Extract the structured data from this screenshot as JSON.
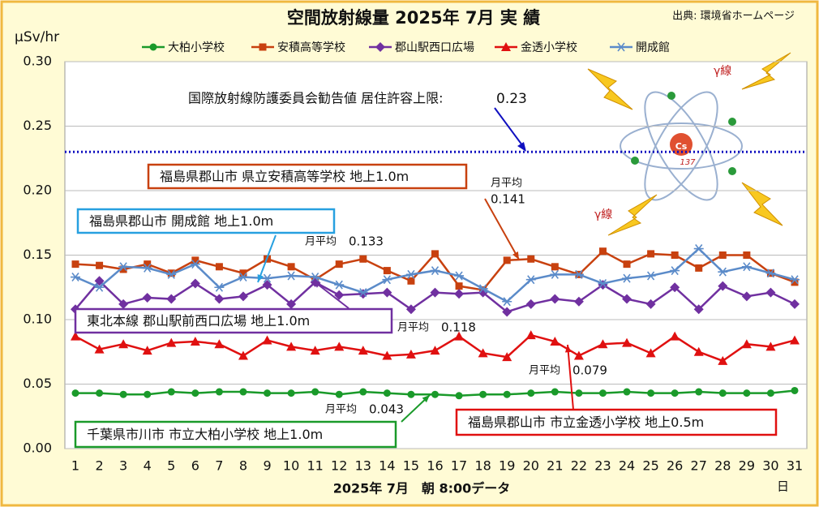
{
  "chart_data": {
    "type": "line",
    "title": "空間放射線量 2025年 7月 実 績",
    "source": "出典: 環境省ホームページ",
    "y_label": "μSv/hr",
    "x_label": "2025年 7月　朝 8:00データ",
    "x_unit": "日",
    "categories": [
      1,
      2,
      3,
      4,
      5,
      6,
      7,
      8,
      9,
      10,
      11,
      12,
      13,
      14,
      15,
      16,
      17,
      18,
      19,
      20,
      21,
      22,
      23,
      24,
      25,
      26,
      27,
      28,
      29,
      30,
      31
    ],
    "ylim": [
      0,
      0.3
    ],
    "yticks": [
      {
        "value": 0,
        "label": "0.00"
      },
      {
        "value": 0.05,
        "label": "0.05"
      },
      {
        "value": 0.1,
        "label": "0.10"
      },
      {
        "value": 0.15,
        "label": "0.15"
      },
      {
        "value": 0.2,
        "label": "0.20"
      },
      {
        "value": 0.25,
        "label": "0.25"
      },
      {
        "value": 0.3,
        "label": "0.30"
      }
    ],
    "grid": true,
    "series": [
      {
        "name": "大柏小学校",
        "color": "#1a9a2a",
        "marker": "circle",
        "values": [
          0.043,
          0.043,
          0.042,
          0.042,
          0.044,
          0.043,
          0.044,
          0.044,
          0.043,
          0.043,
          0.044,
          0.042,
          0.044,
          0.043,
          0.042,
          0.042,
          0.041,
          0.042,
          0.042,
          0.043,
          0.044,
          0.043,
          0.043,
          0.044,
          0.043,
          0.043,
          0.044,
          0.043,
          0.043,
          0.043,
          0.045
        ]
      },
      {
        "name": "安積高等学校",
        "color": "#c8410f",
        "marker": "square",
        "values": [
          0.143,
          0.142,
          0.139,
          0.143,
          0.136,
          0.146,
          0.141,
          0.136,
          0.147,
          0.141,
          0.131,
          0.143,
          0.147,
          0.138,
          0.13,
          0.151,
          0.126,
          0.123,
          0.146,
          0.147,
          0.141,
          0.135,
          0.153,
          0.143,
          0.151,
          0.15,
          0.14,
          0.15,
          0.15,
          0.136,
          0.129
        ]
      },
      {
        "name": "郡山駅西口広場",
        "color": "#7030a0",
        "marker": "diamond",
        "values": [
          0.108,
          0.13,
          0.112,
          0.117,
          0.116,
          0.128,
          0.116,
          0.118,
          0.127,
          0.112,
          0.129,
          0.119,
          0.12,
          0.121,
          0.108,
          0.121,
          0.12,
          0.121,
          0.106,
          0.112,
          0.116,
          0.114,
          0.127,
          0.116,
          0.112,
          0.125,
          0.108,
          0.126,
          0.118,
          0.121,
          0.112
        ]
      },
      {
        "name": "金透小学校",
        "color": "#e01010",
        "marker": "triangle",
        "values": [
          0.087,
          0.077,
          0.081,
          0.076,
          0.082,
          0.083,
          0.081,
          0.072,
          0.084,
          0.079,
          0.076,
          0.079,
          0.076,
          0.072,
          0.073,
          0.076,
          0.087,
          0.074,
          0.071,
          0.088,
          0.083,
          0.072,
          0.081,
          0.082,
          0.074,
          0.087,
          0.075,
          0.068,
          0.081,
          0.079,
          0.084
        ]
      },
      {
        "name": "開成館",
        "color": "#5b8bc9",
        "marker": "asterisk",
        "values": [
          0.133,
          0.125,
          0.141,
          0.14,
          0.135,
          0.143,
          0.125,
          0.133,
          0.132,
          0.134,
          0.133,
          0.127,
          0.121,
          0.131,
          0.135,
          0.138,
          0.134,
          0.124,
          0.114,
          0.131,
          0.135,
          0.135,
          0.128,
          0.132,
          0.134,
          0.138,
          0.155,
          0.137,
          0.141,
          0.136,
          0.131
        ]
      }
    ],
    "reference_line": {
      "label": "国際放射線防護委員会勧告値 居住許容上限:",
      "value": 0.23,
      "color": "#1010c0"
    },
    "annotations": [
      {
        "text": "福島県郡山市 県立安積高等学校 地上1.0m",
        "color": "#c8410f",
        "avg_label": "月平均",
        "avg": 0.141
      },
      {
        "text": "福島県郡山市 開成館 地上1.0m",
        "color": "#27a0e0",
        "avg_label": "月平均",
        "avg": 0.133
      },
      {
        "text": "東北本線 郡山駅前西口広場 地上1.0m",
        "color": "#7030a0",
        "avg_label": "月平均",
        "avg": 0.118
      },
      {
        "text": "千葉県市川市 市立大柏小学校 地上1.0m",
        "color": "#1a9a2a",
        "avg_label": "月平均",
        "avg": 0.043
      },
      {
        "text": "福島県郡山市 市立金透小学校 地上0.5m",
        "color": "#e01010",
        "avg_label": "月平均",
        "avg": 0.079
      }
    ],
    "illustration": {
      "gamma": "γ線",
      "nucleus": "Cs",
      "mass": "137"
    }
  }
}
